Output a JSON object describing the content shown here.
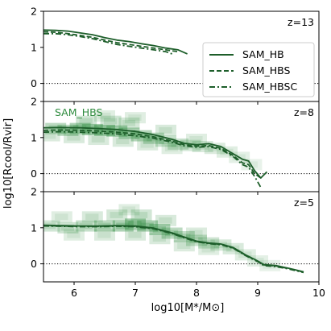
{
  "chart_data": {
    "type": "line",
    "xlabel": "log$_{10}$[M*/M$_\\odot$]",
    "xlabel_display": "log10[M*/M⊙]",
    "ylabel": "log$_{10}$[R$_{cool}$/R$_{vir}$]",
    "ylabel_display": "log10[Rcool/Rvir]",
    "xlim": [
      5.5,
      10
    ],
    "x_ticks": [
      "6",
      "7",
      "8",
      "9",
      "10"
    ],
    "x_tick_values": [
      6,
      7,
      8,
      9,
      10
    ],
    "y_ticks": [
      "0",
      "1",
      "2"
    ],
    "y_tick_values": [
      0,
      1,
      2
    ],
    "legend": {
      "placement": "right of top panel",
      "entries": [
        {
          "label": "SAM_HB",
          "style": "solid"
        },
        {
          "label": "SAM_HBS",
          "style": "dashed"
        },
        {
          "label": "SAM_HBSC",
          "style": "dashdot"
        }
      ]
    },
    "line_color": "#1d5e2a",
    "density_color": "#2e8b3e",
    "zero_reference": "dotted line at y=0",
    "panels": [
      {
        "z_label": "z=13",
        "ylim": [
          -0.5,
          2
        ],
        "series": [
          {
            "name": "SAM_HB",
            "style": "solid",
            "x": [
              5.5,
              5.7,
              5.9,
              6.1,
              6.3,
              6.5,
              6.7,
              6.9,
              7.1,
              7.3,
              7.5,
              7.7,
              7.85
            ],
            "y": [
              1.48,
              1.47,
              1.45,
              1.4,
              1.35,
              1.27,
              1.2,
              1.16,
              1.1,
              1.05,
              0.98,
              0.93,
              0.82
            ]
          },
          {
            "name": "SAM_HBS",
            "style": "dashed",
            "x": [
              5.5,
              5.7,
              5.9,
              6.1,
              6.3,
              6.5,
              6.7,
              6.9,
              7.1,
              7.3,
              7.5,
              7.7
            ],
            "y": [
              1.43,
              1.42,
              1.38,
              1.33,
              1.28,
              1.2,
              1.13,
              1.08,
              1.03,
              0.98,
              0.93,
              0.88
            ]
          },
          {
            "name": "SAM_HBSC",
            "style": "dashdot",
            "x": [
              5.5,
              5.7,
              5.9,
              6.1,
              6.3,
              6.5,
              6.7,
              6.9,
              7.1,
              7.3,
              7.5,
              7.6
            ],
            "y": [
              1.38,
              1.38,
              1.35,
              1.3,
              1.24,
              1.16,
              1.08,
              1.03,
              0.98,
              0.93,
              0.88,
              0.82
            ]
          }
        ]
      },
      {
        "z_label": "z=8",
        "annotation": "SAM_HBS",
        "ylim": [
          -0.5,
          2
        ],
        "series": [
          {
            "name": "SAM_HB",
            "style": "solid",
            "x": [
              5.5,
              5.8,
              6.1,
              6.4,
              6.7,
              7.0,
              7.3,
              7.6,
              7.8,
              8.0,
              8.2,
              8.4,
              8.6,
              8.75,
              8.85,
              8.95,
              9.05,
              9.15
            ],
            "y": [
              1.27,
              1.28,
              1.27,
              1.25,
              1.22,
              1.17,
              1.08,
              0.95,
              0.84,
              0.8,
              0.83,
              0.75,
              0.55,
              0.4,
              0.35,
              0.08,
              -0.12,
              0.05
            ]
          },
          {
            "name": "SAM_HBS",
            "style": "dashed",
            "x": [
              5.5,
              5.8,
              6.1,
              6.4,
              6.7,
              7.0,
              7.3,
              7.6,
              7.8,
              8.0,
              8.2,
              8.4,
              8.6,
              8.75,
              8.85,
              8.95,
              9.05
            ],
            "y": [
              1.2,
              1.21,
              1.2,
              1.18,
              1.15,
              1.1,
              1.02,
              0.9,
              0.8,
              0.76,
              0.78,
              0.7,
              0.5,
              0.3,
              0.25,
              0.0,
              -0.12
            ]
          },
          {
            "name": "SAM_HBSC",
            "style": "dashdot",
            "x": [
              5.5,
              5.8,
              6.1,
              6.4,
              6.7,
              7.0,
              7.3,
              7.6,
              7.8,
              8.0,
              8.2,
              8.4,
              8.6,
              8.75,
              8.85,
              8.95,
              9.05
            ],
            "y": [
              1.15,
              1.16,
              1.15,
              1.13,
              1.1,
              1.05,
              0.98,
              0.87,
              0.77,
              0.73,
              0.75,
              0.67,
              0.47,
              0.25,
              0.18,
              -0.08,
              -0.38
            ]
          }
        ],
        "density_points": [
          [
            5.7,
            1.25,
            0.7
          ],
          [
            5.9,
            1.2,
            0.7
          ],
          [
            6.1,
            1.25,
            0.85
          ],
          [
            6.3,
            1.22,
            0.9
          ],
          [
            6.5,
            1.2,
            1.0
          ],
          [
            6.7,
            1.18,
            0.9
          ],
          [
            6.9,
            1.12,
            0.85
          ],
          [
            7.1,
            1.05,
            0.8
          ],
          [
            7.3,
            0.98,
            0.65
          ],
          [
            7.5,
            0.9,
            0.55
          ],
          [
            7.7,
            0.82,
            0.45
          ],
          [
            7.9,
            0.78,
            0.35
          ],
          [
            8.1,
            0.75,
            0.3
          ],
          [
            8.3,
            0.7,
            0.25
          ],
          [
            8.5,
            0.6,
            0.2
          ],
          [
            8.7,
            0.45,
            0.15
          ],
          [
            8.9,
            0.25,
            0.1
          ],
          [
            6.2,
            1.45,
            0.4
          ],
          [
            6.6,
            1.45,
            0.4
          ],
          [
            6.9,
            1.4,
            0.35
          ],
          [
            6.0,
            1.0,
            0.3
          ],
          [
            6.4,
            0.95,
            0.3
          ],
          [
            6.8,
            0.9,
            0.3
          ],
          [
            7.2,
            0.8,
            0.25
          ],
          [
            7.6,
            0.7,
            0.2
          ],
          [
            5.6,
            1.05,
            0.25
          ],
          [
            6.5,
            1.6,
            0.2
          ],
          [
            7.0,
            1.55,
            0.2
          ],
          [
            7.5,
            1.2,
            0.3
          ],
          [
            8.0,
            0.95,
            0.2
          ]
        ]
      },
      {
        "z_label": "z=5",
        "ylim": [
          -0.5,
          2
        ],
        "series": [
          {
            "name": "SAM_HB",
            "style": "solid",
            "x": [
              5.5,
              5.8,
              6.1,
              6.4,
              6.7,
              7.0,
              7.3,
              7.6,
              7.8,
              8.0,
              8.2,
              8.4,
              8.6,
              8.8,
              9.0,
              9.1,
              9.3,
              9.5,
              9.75
            ],
            "y": [
              1.07,
              1.06,
              1.05,
              1.05,
              1.06,
              1.05,
              0.99,
              0.86,
              0.74,
              0.63,
              0.58,
              0.55,
              0.45,
              0.25,
              0.08,
              -0.02,
              -0.05,
              -0.12,
              -0.22
            ]
          },
          {
            "name": "SAM_HBS",
            "style": "dashed",
            "x": [
              5.5,
              5.8,
              6.1,
              6.4,
              6.7,
              7.0,
              7.3,
              7.6,
              7.8,
              8.0,
              8.2,
              8.4,
              8.6,
              8.8,
              9.0,
              9.1,
              9.3,
              9.5,
              9.75
            ],
            "y": [
              1.06,
              1.05,
              1.04,
              1.04,
              1.05,
              1.04,
              0.98,
              0.85,
              0.73,
              0.62,
              0.57,
              0.54,
              0.44,
              0.24,
              0.07,
              -0.03,
              -0.06,
              -0.13,
              -0.23
            ]
          },
          {
            "name": "SAM_HBSC",
            "style": "dashdot",
            "x": [
              5.5,
              5.8,
              6.1,
              6.4,
              6.7,
              7.0,
              7.3,
              7.6,
              7.8,
              8.0,
              8.2,
              8.4,
              8.6,
              8.8,
              9.0,
              9.1,
              9.3,
              9.5,
              9.75
            ],
            "y": [
              1.05,
              1.04,
              1.03,
              1.03,
              1.04,
              1.03,
              0.97,
              0.84,
              0.72,
              0.61,
              0.56,
              0.53,
              0.43,
              0.23,
              0.06,
              -0.05,
              -0.08,
              -0.14,
              -0.24
            ]
          }
        ],
        "density_points": [
          [
            5.6,
            1.05,
            0.4
          ],
          [
            5.9,
            1.0,
            0.45
          ],
          [
            6.2,
            1.05,
            0.55
          ],
          [
            6.5,
            1.05,
            0.7
          ],
          [
            6.8,
            1.05,
            0.85
          ],
          [
            7.0,
            1.1,
            1.0
          ],
          [
            7.2,
            1.05,
            0.95
          ],
          [
            7.4,
            0.95,
            0.85
          ],
          [
            7.6,
            0.85,
            0.7
          ],
          [
            7.8,
            0.75,
            0.6
          ],
          [
            8.0,
            0.65,
            0.5
          ],
          [
            8.2,
            0.58,
            0.45
          ],
          [
            8.4,
            0.52,
            0.35
          ],
          [
            8.6,
            0.42,
            0.3
          ],
          [
            8.8,
            0.25,
            0.2
          ],
          [
            9.0,
            0.08,
            0.15
          ],
          [
            9.2,
            -0.05,
            0.1
          ],
          [
            6.3,
            1.3,
            0.3
          ],
          [
            6.7,
            1.35,
            0.35
          ],
          [
            7.1,
            1.35,
            0.4
          ],
          [
            6.0,
            0.8,
            0.2
          ],
          [
            6.5,
            0.8,
            0.25
          ],
          [
            7.0,
            0.8,
            0.3
          ],
          [
            7.4,
            0.7,
            0.3
          ],
          [
            7.8,
            0.5,
            0.25
          ],
          [
            8.2,
            0.4,
            0.2
          ],
          [
            5.8,
            1.3,
            0.2
          ],
          [
            7.5,
            1.2,
            0.3
          ],
          [
            8.0,
            0.85,
            0.25
          ],
          [
            6.9,
            1.5,
            0.2
          ]
        ]
      }
    ]
  }
}
